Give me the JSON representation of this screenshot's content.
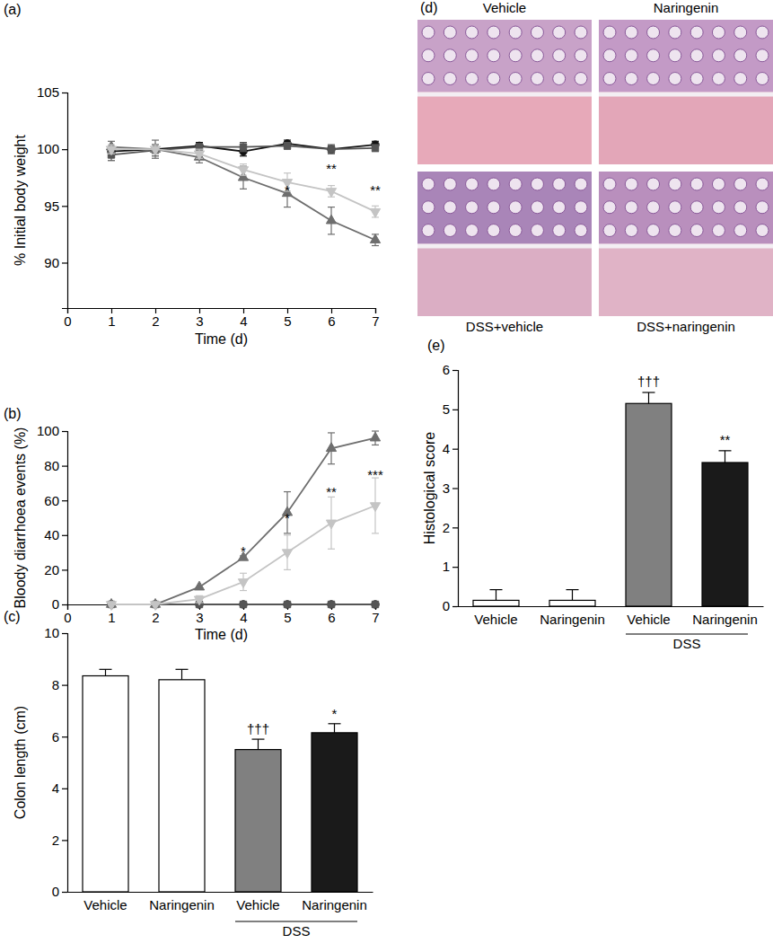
{
  "chart_data": [
    {
      "type": "line",
      "title": "(a)",
      "xlabel": "Time (d)",
      "ylabel": "% Initial body weight",
      "x": [
        1,
        2,
        3,
        4,
        5,
        6,
        7
      ],
      "xlim": [
        0,
        7
      ],
      "xticks": [
        0,
        1,
        2,
        3,
        4,
        5,
        6,
        7
      ],
      "ylim": [
        86,
        105
      ],
      "yticks": [
        90,
        95,
        100,
        105
      ],
      "series": [
        {
          "color": "#111111",
          "marker": "circle",
          "values": [
            99.8,
            100,
            100.3,
            99.8,
            100.5,
            100,
            100.4
          ],
          "errors": [
            0.4,
            0.4,
            0.3,
            0.4,
            0.3,
            0.3,
            0.3
          ]
        },
        {
          "color": "#555555",
          "marker": "square",
          "values": [
            99.5,
            99.9,
            100.2,
            100.2,
            100.3,
            100,
            100.1
          ],
          "errors": [
            0.5,
            0.5,
            0.3,
            0.4,
            0.3,
            0.4,
            0.3
          ]
        },
        {
          "color": "#6e6e6e",
          "marker": "triangle-up",
          "values": [
            100.2,
            100,
            99.3,
            97.5,
            96.1,
            93.7,
            92.0
          ],
          "errors": [
            0.5,
            0.8,
            0.5,
            1.0,
            1.2,
            1.2,
            0.5
          ]
        },
        {
          "color": "#c4c4c4",
          "marker": "triangle-down",
          "values": [
            100,
            100,
            99.6,
            98.2,
            97.1,
            96.3,
            94.5
          ],
          "errors": [
            0.4,
            0.4,
            0.4,
            0.5,
            0.8,
            0.5,
            0.5
          ]
        }
      ],
      "annotations": [
        {
          "text": "*",
          "x": 5,
          "y": 96.3
        },
        {
          "text": "**",
          "x": 6,
          "y": 98.2
        },
        {
          "text": "**",
          "x": 7,
          "y": 96.3
        }
      ]
    },
    {
      "type": "line",
      "title": "(b)",
      "xlabel": "Time (d)",
      "ylabel": "Bloody diarrhoea events (%)",
      "x": [
        1,
        2,
        3,
        4,
        5,
        6,
        7
      ],
      "xlim": [
        0,
        7
      ],
      "xticks": [
        0,
        1,
        2,
        3,
        4,
        5,
        6,
        7
      ],
      "ylim": [
        0,
        100
      ],
      "yticks": [
        0,
        20,
        40,
        60,
        80,
        100
      ],
      "series": [
        {
          "color": "#111111",
          "marker": "circle",
          "values": [
            0,
            0,
            0,
            0,
            0,
            0,
            0
          ]
        },
        {
          "color": "#555555",
          "marker": "square",
          "values": [
            0,
            0,
            0,
            0,
            0,
            0,
            0
          ]
        },
        {
          "color": "#6e6e6e",
          "marker": "triangle-up",
          "values": [
            0,
            0,
            10,
            27,
            53,
            90,
            96
          ],
          "errors": [
            0,
            0,
            0,
            1,
            12,
            9,
            4
          ]
        },
        {
          "color": "#c4c4c4",
          "marker": "triangle-down",
          "values": [
            0,
            0,
            3,
            13,
            30,
            47,
            57
          ],
          "errors": [
            0,
            0,
            2,
            5,
            10,
            15,
            16
          ]
        }
      ],
      "annotations": [
        {
          "text": "*",
          "x": 4,
          "y": 30
        },
        {
          "text": "*",
          "x": 5,
          "y": 49
        },
        {
          "text": "**",
          "x": 6,
          "y": 64
        },
        {
          "text": "***",
          "x": 7,
          "y": 74
        }
      ]
    },
    {
      "type": "bar",
      "title": "(c)",
      "ylabel": "Colon length (cm)",
      "categories": [
        "Vehicle",
        "Naringenin",
        "Vehicle",
        "Naringenin"
      ],
      "values": [
        8.35,
        8.2,
        5.5,
        6.15
      ],
      "errors": [
        0.25,
        0.4,
        0.4,
        0.35
      ],
      "colors": [
        "#ffffff",
        "#ffffff",
        "#808080",
        "#1a1a1a"
      ],
      "ylim": [
        0,
        10
      ],
      "yticks": [
        0,
        2,
        4,
        6,
        8,
        10
      ],
      "groups": [
        {
          "label": "DSS",
          "start": 2,
          "end": 3
        }
      ],
      "annotations": [
        {
          "text": "†††",
          "x": 2,
          "y": 6.1
        },
        {
          "text": "*",
          "x": 3,
          "y": 6.7
        }
      ]
    },
    {
      "type": "image",
      "title": "(d)",
      "labels": [
        "Vehicle",
        "Naringenin",
        "DSS+vehicle",
        "DSS+naringenin"
      ]
    },
    {
      "type": "bar",
      "title": "(e)",
      "ylabel": "Histological score",
      "categories": [
        "Vehicle",
        "Naringenin",
        "Vehicle",
        "Naringenin"
      ],
      "values": [
        0.15,
        0.15,
        5.15,
        3.65
      ],
      "errors": [
        0.27,
        0.27,
        0.28,
        0.3
      ],
      "colors": [
        "#ffffff",
        "#ffffff",
        "#808080",
        "#1a1a1a"
      ],
      "ylim": [
        0,
        6
      ],
      "yticks": [
        0,
        1,
        2,
        3,
        4,
        5,
        6
      ],
      "groups": [
        {
          "label": "DSS",
          "start": 2,
          "end": 3
        }
      ],
      "annotations": [
        {
          "text": "†††",
          "x": 2,
          "y": 5.6
        },
        {
          "text": "**",
          "x": 3,
          "y": 4.1
        }
      ]
    }
  ]
}
